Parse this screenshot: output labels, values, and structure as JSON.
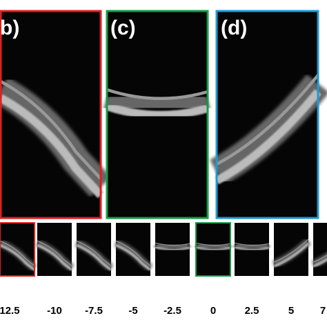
{
  "panels": [
    {
      "label": "b)"
    },
    {
      "label": "(c)"
    },
    {
      "label": "(d)"
    }
  ],
  "thumbnails": [
    {
      "label": "12.5"
    },
    {
      "label": "-10"
    },
    {
      "label": "-7.5"
    },
    {
      "label": "-5"
    },
    {
      "label": "-2.5"
    },
    {
      "label": "0"
    },
    {
      "label": "2.5"
    },
    {
      "label": "5"
    },
    {
      "label": "7"
    }
  ]
}
